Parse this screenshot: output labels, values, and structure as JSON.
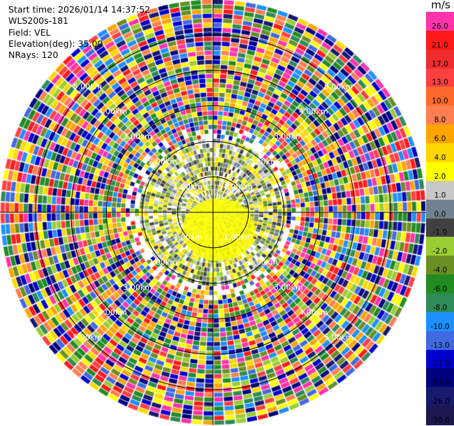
{
  "header": {
    "start_time": "Start time: 2026/01/14 14:37:52",
    "instrument": "WLS200s-181",
    "field": "Field: VEL",
    "elevation": "Elevation(deg): 35.00",
    "nrays": "NRays: 120"
  },
  "chart_data": {
    "type": "heatmap",
    "subtype": "polar-ppi",
    "field": "VEL",
    "units": "m/s",
    "nrays": 120,
    "max_range_km": 6.0,
    "range_rings": [
      {
        "label": "1.00km",
        "km": 1
      },
      {
        "label": "2.00km",
        "km": 2
      },
      {
        "label": "3.00km",
        "km": 3
      },
      {
        "label": "4.00km",
        "km": 4
      },
      {
        "label": "5.00km",
        "km": 5
      }
    ],
    "colorbar": {
      "title": "m/s",
      "ticks": [
        "26.0",
        "21.0",
        "17.0",
        "13.0",
        "10.0",
        "8.0",
        "6.0",
        "4.0",
        "2.0",
        "1.0",
        "0.0",
        "-1.0",
        "-2.0",
        "-4.0",
        "-6.0",
        "-8.0",
        "-10.0",
        "-13.0",
        "-17.0",
        "-21.0",
        "-26.0",
        "-30.0"
      ],
      "colors": [
        "#ff33aa",
        "#ff1a1a",
        "#ee2c2c",
        "#ff4040",
        "#ff6a2a",
        "#ff7f50",
        "#ffa500",
        "#ffd700",
        "#ffff00",
        "#c8c8c8",
        "#708090",
        "#404040",
        "#9acd32",
        "#6b8e23",
        "#228b22",
        "#2e8b57",
        "#1e90ff",
        "#4169e1",
        "#0000cd",
        "#000080",
        "#191970",
        "#1a1a50"
      ]
    }
  }
}
